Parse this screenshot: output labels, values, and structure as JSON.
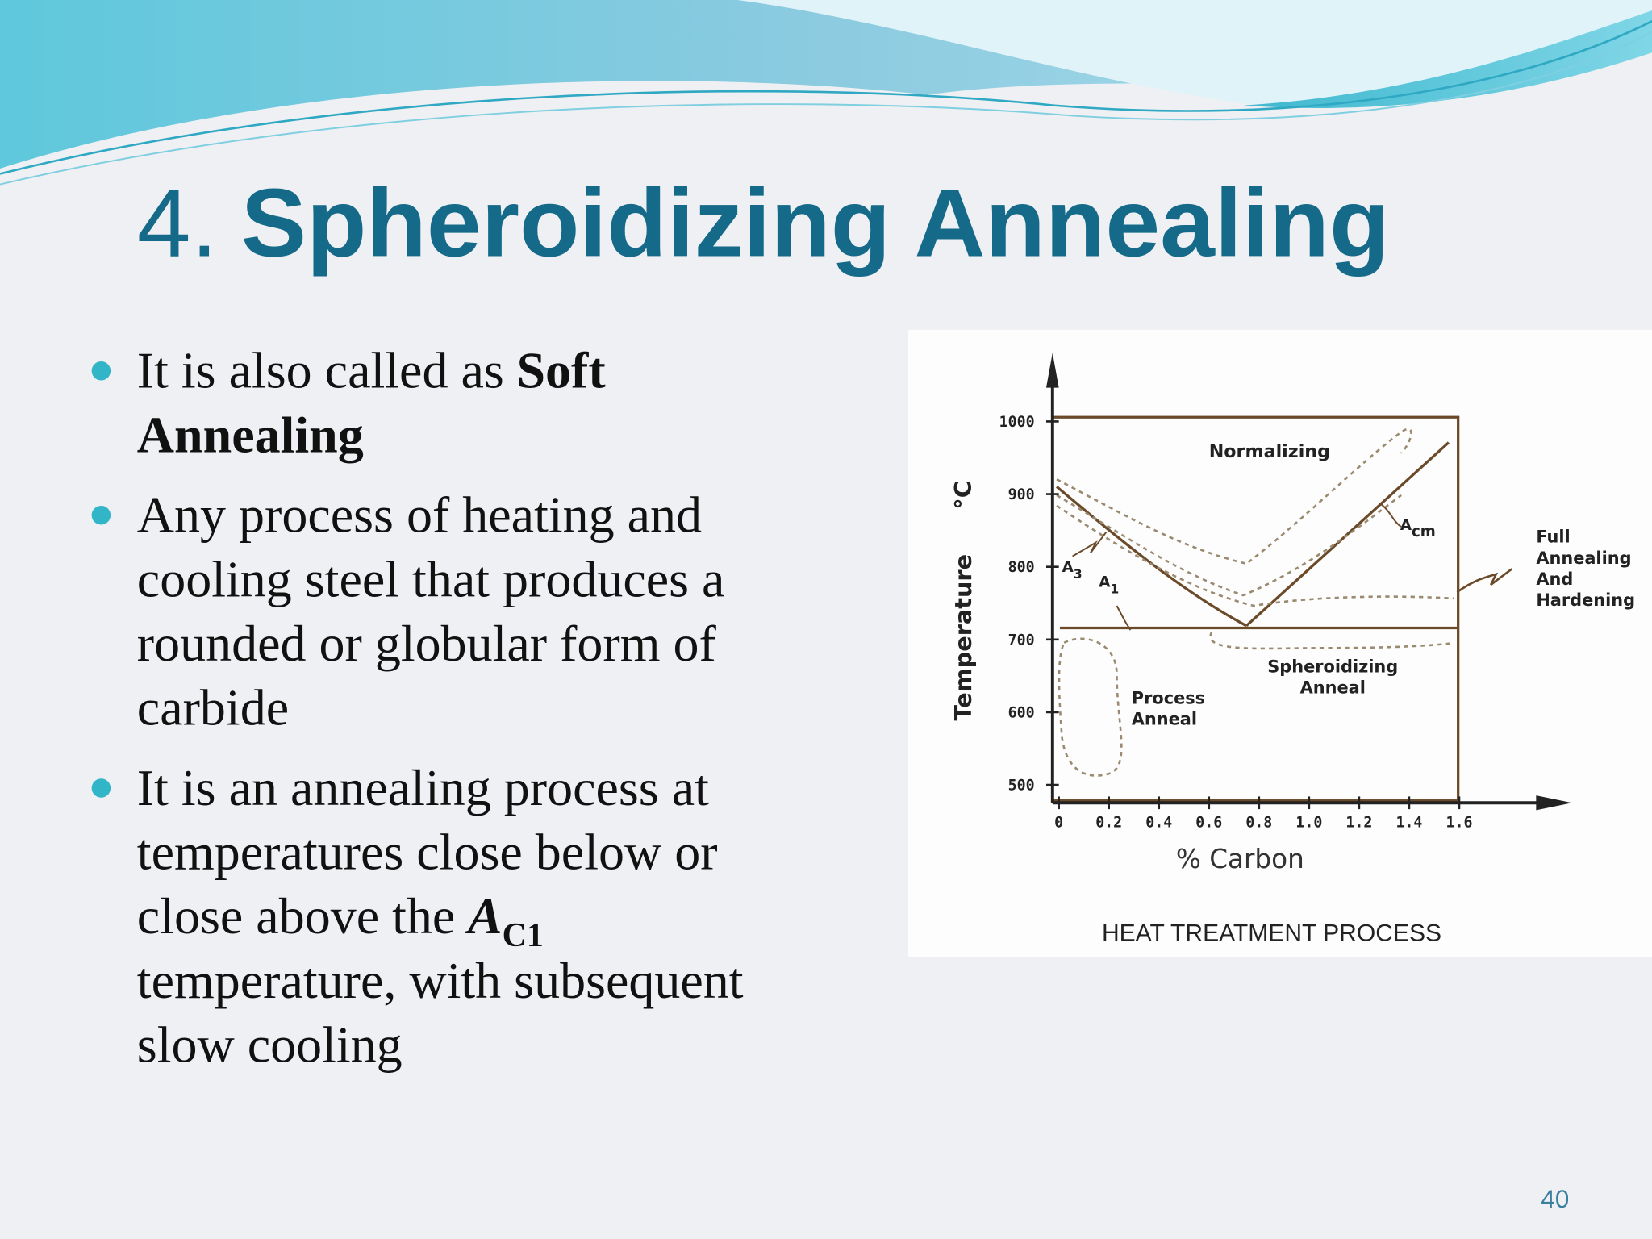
{
  "header": {
    "number": "4.",
    "title": "Spheroidizing Annealing"
  },
  "bullets": [
    {
      "lines": [
        [
          {
            "text": "It is also called as"
          },
          {
            "text": "Soft",
            "style": "bold"
          }
        ],
        [
          {
            "text": "Annealing",
            "style": "bold"
          }
        ]
      ]
    },
    {
      "lines": [
        [
          {
            "text": "Any process of heating and"
          }
        ],
        [
          {
            "text": "cooling steel that produces a"
          }
        ],
        [
          {
            "text": "rounded or globular form of"
          }
        ],
        [
          {
            "text": "carbide"
          }
        ]
      ]
    },
    {
      "lines": [
        [
          {
            "text": "It is an annealing process at"
          }
        ],
        [
          {
            "text": "temperatures close below or"
          }
        ],
        [
          {
            "text": "close above the"
          },
          {
            "text": "A",
            "style": "bold-italic"
          },
          {
            "text": "C1",
            "style": "sub"
          }
        ],
        [
          {
            "text": "temperature, with subsequent"
          }
        ],
        [
          {
            "text": "slow cooling"
          }
        ]
      ]
    }
  ],
  "figure": {
    "y_label": "Temperature",
    "y_unit": "°C",
    "x_label": "% Carbon",
    "caption": "HEAT TREATMENT PROCESS",
    "yticks": [
      1000,
      900,
      800,
      700,
      600,
      500
    ],
    "ylim": [
      500,
      1000
    ],
    "xticks": [
      0,
      0.2,
      0.4,
      0.6,
      0.8,
      {
        "value": 1.0,
        "label": "1.0"
      },
      1.2,
      1.4,
      1.6
    ],
    "xlim": [
      0,
      1.6
    ],
    "regions": {
      "normalizing": "Normalizing",
      "full_annealing": [
        "Full",
        "Annealing",
        "And",
        "Hardening"
      ],
      "spheroidizing": [
        "Spheroidizing",
        "Anneal"
      ],
      "process": [
        "Process",
        "Anneal"
      ]
    },
    "lines": {
      "a3": {
        "symbol": "A",
        "subscript": "3"
      },
      "a1": {
        "symbol": "A",
        "subscript": "1"
      },
      "acm": {
        "symbol": "A",
        "subscript": "cm"
      }
    }
  },
  "page_number": "40"
}
